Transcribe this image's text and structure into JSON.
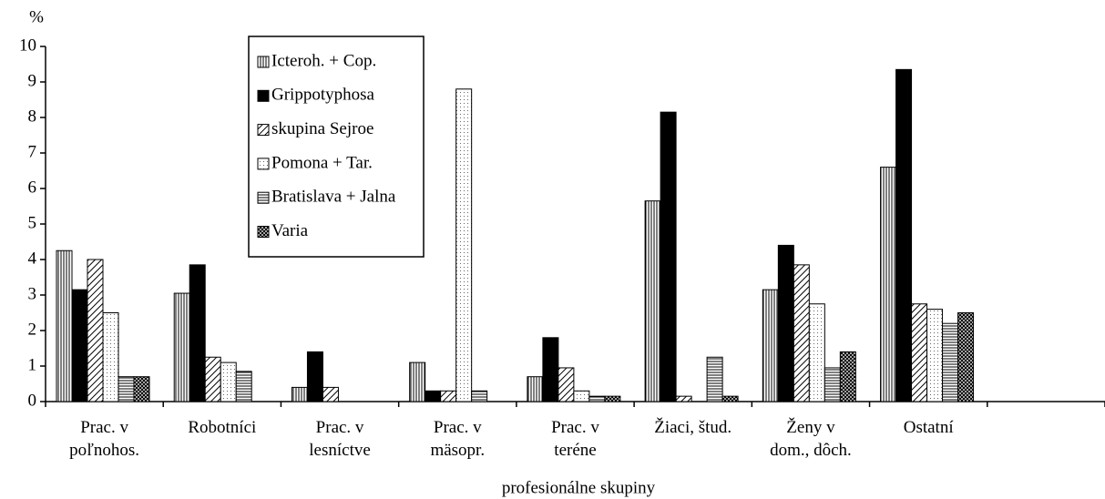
{
  "chart_data": {
    "type": "bar",
    "y_label": "%",
    "x_label": "profesionálne skupiny",
    "categories": [
      "Prac. v\npoľnohos.",
      "Robotníci",
      "Prac. v\nlesníctve",
      "Prac. v\nmäsopr.",
      "Prac. v\nteréne",
      "Žiaci, štud.",
      "Ženy v\ndom., dôch.",
      "Ostatní",
      null
    ],
    "series": [
      {
        "name": "Icteroh. + Cop.",
        "pattern": "vertical",
        "values": [
          4.25,
          3.05,
          0.4,
          1.1,
          0.7,
          5.65,
          3.15,
          6.6,
          null
        ]
      },
      {
        "name": "Grippotyphosa",
        "pattern": "solid",
        "values": [
          3.15,
          3.85,
          1.4,
          0.3,
          1.8,
          8.15,
          4.4,
          9.35,
          null
        ]
      },
      {
        "name": "skupina Sejroe",
        "pattern": "diagonal",
        "values": [
          4.0,
          1.25,
          0.4,
          0.3,
          0.95,
          0.15,
          3.85,
          2.75,
          null
        ]
      },
      {
        "name": "Pomona + Tar.",
        "pattern": "dots",
        "values": [
          2.5,
          1.1,
          null,
          8.8,
          0.3,
          null,
          2.75,
          2.6,
          null
        ]
      },
      {
        "name": "Bratislava + Jalna",
        "pattern": "horizontal",
        "values": [
          0.7,
          0.85,
          null,
          0.3,
          0.15,
          1.25,
          0.95,
          2.2,
          null
        ]
      },
      {
        "name": "Varia",
        "pattern": "cross",
        "values": [
          0.7,
          null,
          null,
          null,
          0.15,
          0.15,
          1.4,
          2.5,
          null
        ]
      }
    ],
    "ylim": [
      0,
      10
    ],
    "yticks": [
      0,
      1,
      2,
      3,
      4,
      5,
      6,
      7,
      8,
      9,
      10
    ]
  }
}
